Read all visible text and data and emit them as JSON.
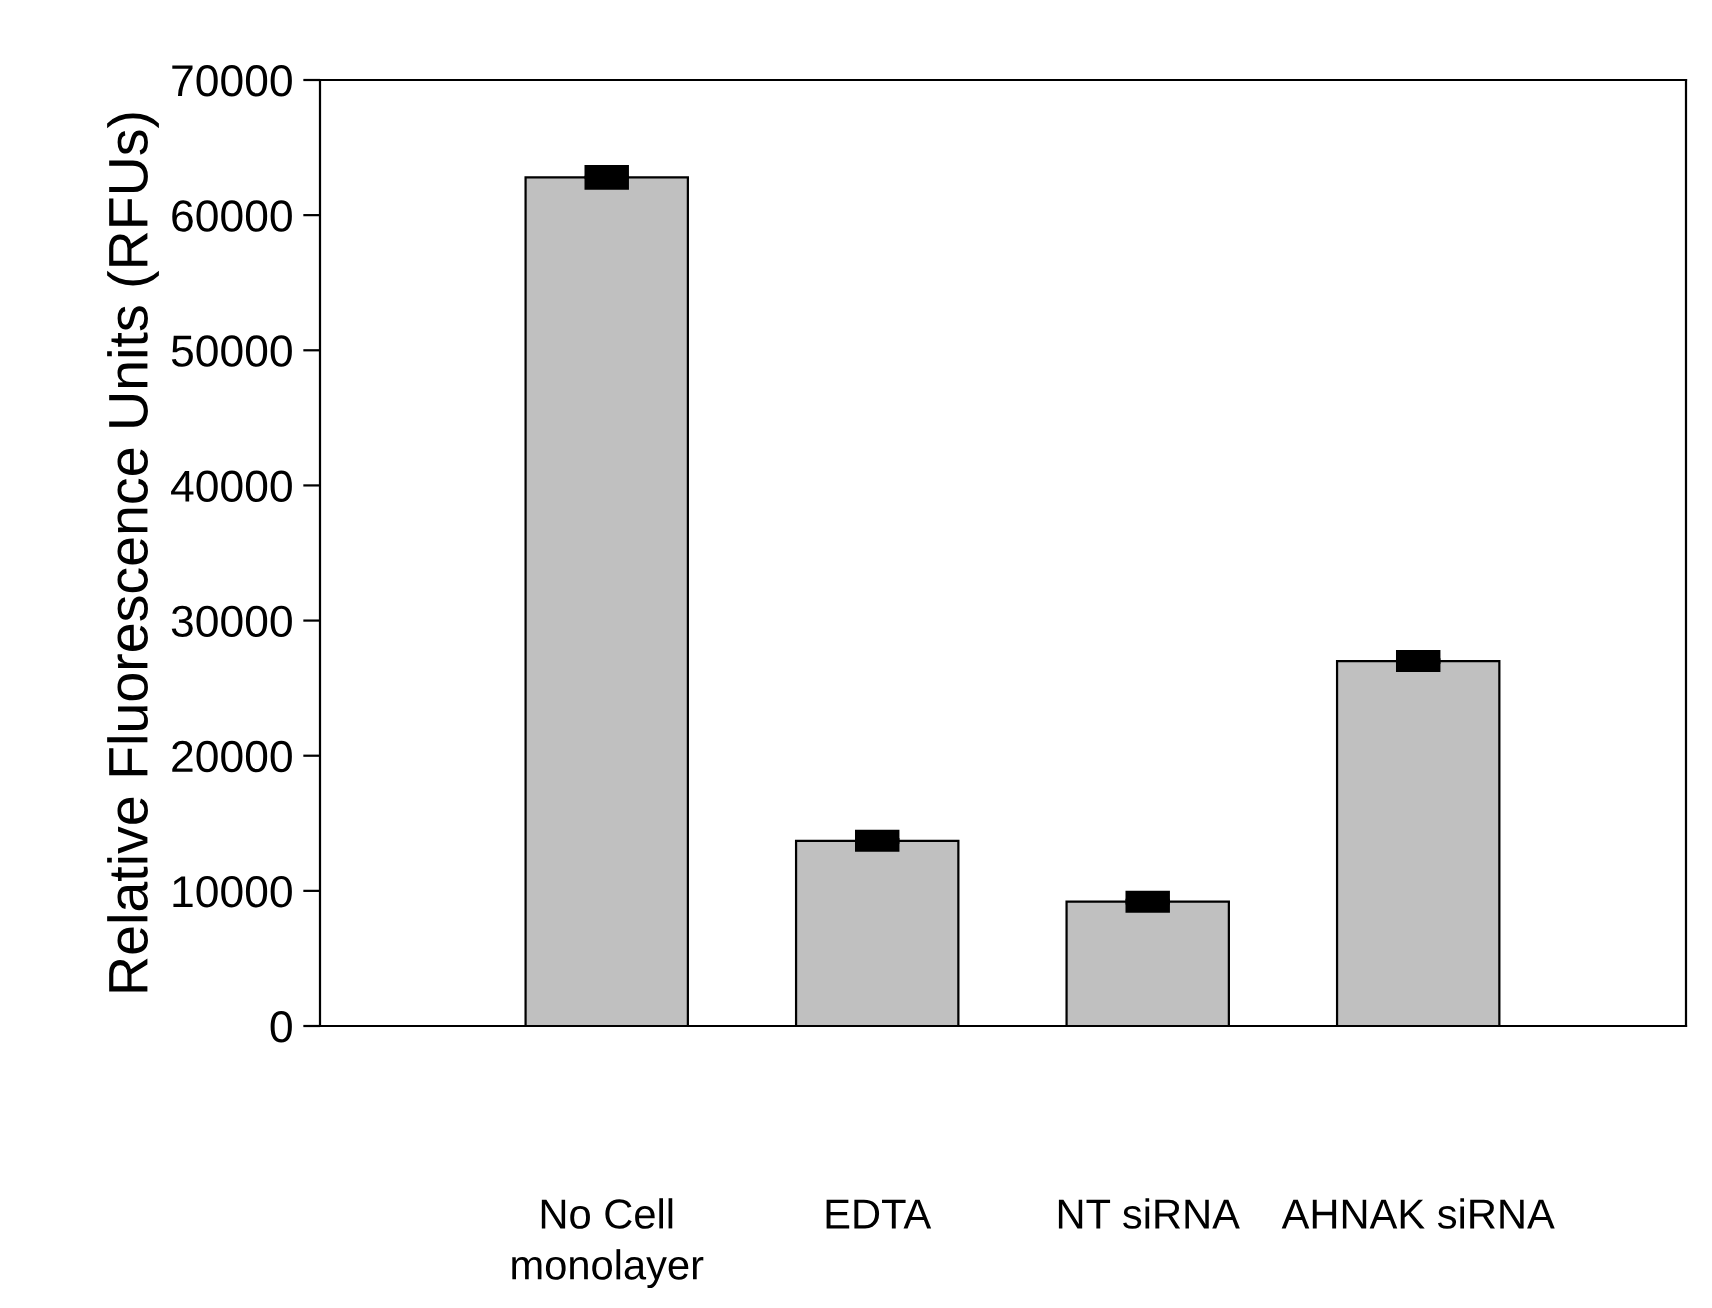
{
  "chart_data": {
    "type": "bar",
    "ylabel": "Relative Fluorescence Units (RFUs)",
    "categories": [
      "No Cell\nmonolayer",
      "EDTA",
      "NT siRNA",
      "AHNAK siRNA"
    ],
    "values": [
      62800,
      13700,
      9200,
      27000
    ],
    "errors": [
      400,
      300,
      300,
      300
    ],
    "color": "#c0c0c0",
    "ylim": [
      0,
      70000
    ],
    "yticks": [
      0,
      10000,
      20000,
      30000,
      40000,
      50000,
      60000,
      70000
    ],
    "grid": false,
    "legend": false
  }
}
